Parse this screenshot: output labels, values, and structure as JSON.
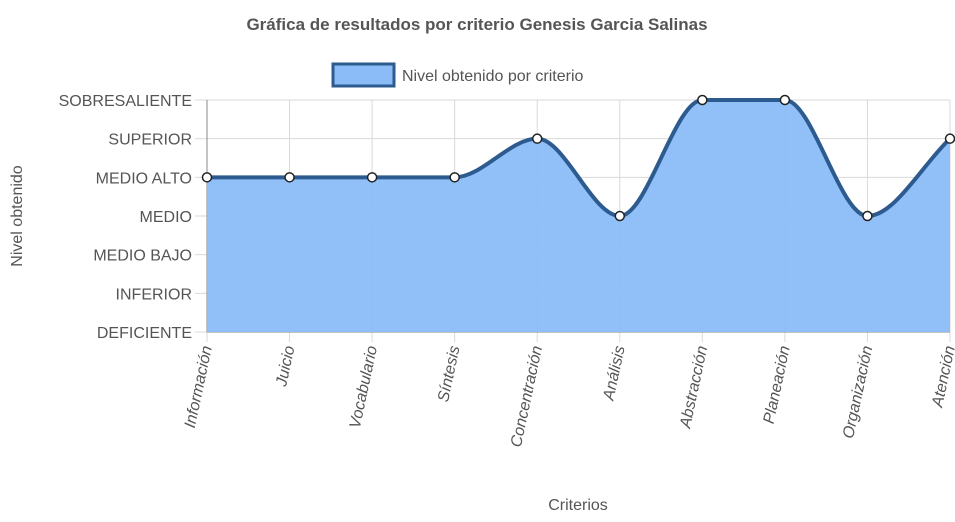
{
  "chart_data": {
    "type": "area",
    "title": "Gráfica de resultados por criterio Genesis Garcia Salinas",
    "xlabel": "Criterios",
    "ylabel": "Nivel obtenido",
    "legend_position": "top",
    "grid": true,
    "y_levels": [
      "DEFICIENTE",
      "INFERIOR",
      "MEDIO BAJO",
      "MEDIO",
      "MEDIO ALTO",
      "SUPERIOR",
      "SOBRESALIENTE"
    ],
    "ylim": [
      0,
      6
    ],
    "categories": [
      "Información",
      "Juicio",
      "Vocabulario",
      "Síntesis",
      "Concentración",
      "Análisis",
      "Abstracción",
      "Planeación",
      "Organización",
      "Atención"
    ],
    "series": [
      {
        "name": "Nivel obtenido por criterio",
        "values": [
          4,
          4,
          4,
          4,
          5,
          3,
          6,
          6,
          3,
          5
        ],
        "value_labels": [
          "MEDIO ALTO",
          "MEDIO ALTO",
          "MEDIO ALTO",
          "MEDIO ALTO",
          "SUPERIOR",
          "MEDIO",
          "SOBRESALIENTE",
          "SOBRESALIENTE",
          "MEDIO",
          "SUPERIOR"
        ]
      }
    ],
    "colors": {
      "fill": "#8bbcf7",
      "line": "#2d5b8f",
      "legend_fill": "#8bbcf7",
      "legend_border": "#2d5b8f",
      "grid": "#d9d9d9",
      "axis": "#888888"
    }
  }
}
